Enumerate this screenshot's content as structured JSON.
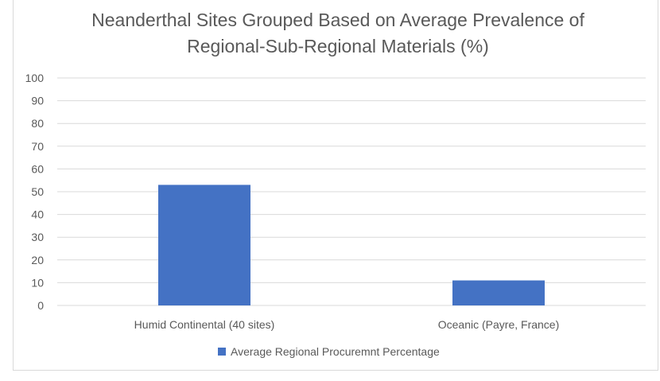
{
  "chart_data": {
    "type": "bar",
    "title_lines": [
      "Neanderthal Sites Grouped Based on Average Prevalence of",
      "Regional-Sub-Regional Materials (%)"
    ],
    "categories": [
      "Humid Continental (40 sites)",
      "Oceanic (Payre, France)"
    ],
    "series": [
      {
        "name": "Average Regional Procuremnt Percentage",
        "values": [
          53,
          11
        ],
        "color": "#4472c4"
      }
    ],
    "yticks": [
      0,
      10,
      20,
      30,
      40,
      50,
      60,
      70,
      80,
      90,
      100
    ],
    "ylim": [
      0,
      100
    ],
    "grid": true,
    "legend_position": "bottom"
  }
}
